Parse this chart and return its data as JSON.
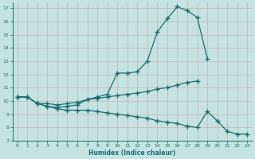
{
  "xlabel": "Humidex (Indice chaleur)",
  "xlim": [
    -0.5,
    23.5
  ],
  "ylim": [
    7,
    17.4
  ],
  "xticks": [
    0,
    1,
    2,
    3,
    4,
    5,
    6,
    7,
    8,
    9,
    10,
    11,
    12,
    13,
    14,
    15,
    16,
    17,
    18,
    19,
    20,
    21,
    22,
    23
  ],
  "yticks": [
    7,
    8,
    9,
    10,
    11,
    12,
    13,
    14,
    15,
    16,
    17
  ],
  "bg_color": "#c5e3e3",
  "line_color": "#1a6e6e",
  "grid_color": "#b8d8d8",
  "line1_x": [
    0,
    1,
    2,
    3,
    4,
    5,
    6,
    7,
    8,
    9,
    10,
    11,
    12,
    13,
    14,
    15,
    16,
    17,
    18,
    19
  ],
  "line1_y": [
    10.3,
    10.3,
    9.8,
    9.6,
    9.5,
    9.6,
    9.7,
    10.1,
    10.3,
    10.5,
    12.1,
    12.1,
    12.2,
    13.0,
    15.2,
    16.2,
    17.1,
    16.8,
    16.3,
    13.2
  ],
  "line2_x": [
    0,
    1,
    2,
    3,
    4,
    5,
    6,
    7,
    8,
    9,
    10,
    11,
    12,
    13,
    14,
    15,
    16,
    17,
    18
  ],
  "line2_y": [
    10.3,
    10.3,
    9.8,
    9.8,
    9.7,
    9.8,
    9.9,
    10.1,
    10.2,
    10.3,
    10.4,
    10.5,
    10.6,
    10.7,
    10.9,
    11.0,
    11.2,
    11.4,
    11.5
  ],
  "line3_x": [
    0,
    1,
    2,
    3,
    4,
    5,
    6,
    7,
    8,
    9,
    10,
    11,
    12,
    13,
    14,
    15,
    16,
    17,
    18,
    19,
    20,
    21,
    22,
    23
  ],
  "line3_y": [
    10.3,
    10.3,
    9.8,
    9.6,
    9.4,
    9.3,
    9.3,
    9.3,
    9.2,
    9.1,
    9.0,
    8.9,
    8.8,
    8.7,
    8.5,
    8.4,
    8.3,
    8.1,
    8.0,
    9.2,
    8.5,
    7.7,
    7.5,
    7.5
  ]
}
